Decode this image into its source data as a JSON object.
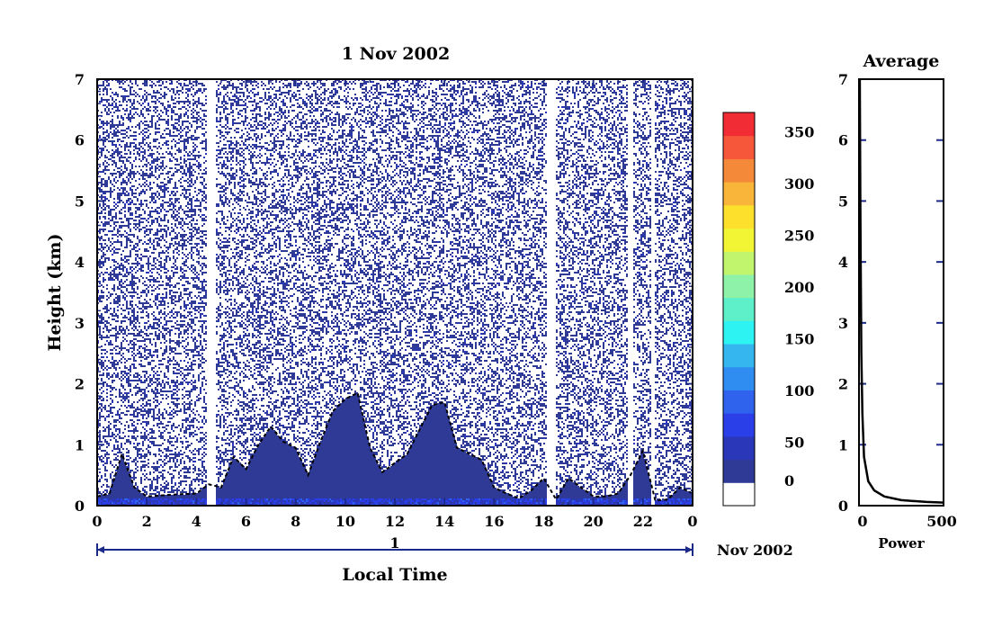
{
  "chart_data": [
    {
      "type": "heatmap",
      "title": "1 Nov 2002",
      "xlabel": "Local Time",
      "ylabel": "Height (km)",
      "x_ticks": [
        "0",
        "2",
        "4",
        "6",
        "8",
        "10",
        "12",
        "14",
        "16",
        "18",
        "20",
        "22",
        "0"
      ],
      "xlim": [
        0,
        24
      ],
      "y_ticks": [
        "0",
        "1",
        "2",
        "3",
        "4",
        "5",
        "6",
        "7"
      ],
      "ylim": [
        0,
        7
      ],
      "date_bar_label": "1",
      "date_bar_suffix": "Nov 2002",
      "colorbar": {
        "tick_labels": [
          "0",
          "50",
          "100",
          "150",
          "200",
          "250",
          "300",
          "350"
        ],
        "range": [
          0,
          380
        ],
        "bins": [
          {
            "value": 0,
            "color": "#ffffff"
          },
          {
            "value": 10,
            "color": "#2f3a96"
          },
          {
            "value": 35,
            "color": "#2a37b8"
          },
          {
            "value": 60,
            "color": "#2b3fe8"
          },
          {
            "value": 85,
            "color": "#2f63ee"
          },
          {
            "value": 110,
            "color": "#2f8cf0"
          },
          {
            "value": 135,
            "color": "#35b6ee"
          },
          {
            "value": 160,
            "color": "#2ef3f3"
          },
          {
            "value": 185,
            "color": "#5ef0c8"
          },
          {
            "value": 210,
            "color": "#8ef2a8"
          },
          {
            "value": 235,
            "color": "#c2f56e"
          },
          {
            "value": 260,
            "color": "#f1f533"
          },
          {
            "value": 285,
            "color": "#fde02c"
          },
          {
            "value": 310,
            "color": "#f9b53a"
          },
          {
            "value": 335,
            "color": "#f5893a"
          },
          {
            "value": 360,
            "color": "#f6563a"
          },
          {
            "value": 375,
            "color": "#f22c34"
          }
        ]
      },
      "boundary_layer_top_km": [
        {
          "x": 0,
          "y": 0.15
        },
        {
          "x": 0.5,
          "y": 0.2
        },
        {
          "x": 1,
          "y": 0.85
        },
        {
          "x": 1.5,
          "y": 0.3
        },
        {
          "x": 2,
          "y": 0.15
        },
        {
          "x": 3,
          "y": 0.18
        },
        {
          "x": 4,
          "y": 0.2
        },
        {
          "x": 4.5,
          "y": 0.35
        },
        {
          "x": 5,
          "y": 0.3
        },
        {
          "x": 5.5,
          "y": 0.8
        },
        {
          "x": 6,
          "y": 0.6
        },
        {
          "x": 6.5,
          "y": 1.0
        },
        {
          "x": 7,
          "y": 1.3
        },
        {
          "x": 7.5,
          "y": 1.05
        },
        {
          "x": 8,
          "y": 0.95
        },
        {
          "x": 8.5,
          "y": 0.5
        },
        {
          "x": 9,
          "y": 1.05
        },
        {
          "x": 9.5,
          "y": 1.55
        },
        {
          "x": 10,
          "y": 1.75
        },
        {
          "x": 10.5,
          "y": 1.85
        },
        {
          "x": 11,
          "y": 0.95
        },
        {
          "x": 11.5,
          "y": 0.55
        },
        {
          "x": 12,
          "y": 0.7
        },
        {
          "x": 12.5,
          "y": 0.85
        },
        {
          "x": 13,
          "y": 1.25
        },
        {
          "x": 13.5,
          "y": 1.65
        },
        {
          "x": 14,
          "y": 1.7
        },
        {
          "x": 14.5,
          "y": 0.95
        },
        {
          "x": 15,
          "y": 0.85
        },
        {
          "x": 15.5,
          "y": 0.75
        },
        {
          "x": 16,
          "y": 0.3
        },
        {
          "x": 16.5,
          "y": 0.2
        },
        {
          "x": 17,
          "y": 0.12
        },
        {
          "x": 17.5,
          "y": 0.25
        },
        {
          "x": 18,
          "y": 0.45
        },
        {
          "x": 18.5,
          "y": 0.1
        },
        {
          "x": 19,
          "y": 0.45
        },
        {
          "x": 19.5,
          "y": 0.3
        },
        {
          "x": 20,
          "y": 0.15
        },
        {
          "x": 20.5,
          "y": 0.15
        },
        {
          "x": 21,
          "y": 0.2
        },
        {
          "x": 21.5,
          "y": 0.5
        },
        {
          "x": 22,
          "y": 0.9
        },
        {
          "x": 22.5,
          "y": 0.08
        },
        {
          "x": 23,
          "y": 0.1
        },
        {
          "x": 23.5,
          "y": 0.3
        },
        {
          "x": 24,
          "y": 0.2
        }
      ]
    },
    {
      "type": "line",
      "title": "Average",
      "xlabel": "Power",
      "ylabel": "",
      "x_ticks": [
        "0",
        "500"
      ],
      "xlim": [
        0,
        500
      ],
      "y_ticks": [
        "0",
        "1",
        "2",
        "3",
        "4",
        "5",
        "6",
        "7"
      ],
      "ylim": [
        0,
        7
      ],
      "series": [
        {
          "x": [
            5,
            8,
            10,
            14,
            20,
            30,
            55,
            90,
            150,
            250,
            400,
            500
          ],
          "y": [
            7,
            5,
            4,
            2.5,
            1.5,
            0.8,
            0.4,
            0.25,
            0.15,
            0.09,
            0.06,
            0.05
          ]
        }
      ]
    }
  ]
}
